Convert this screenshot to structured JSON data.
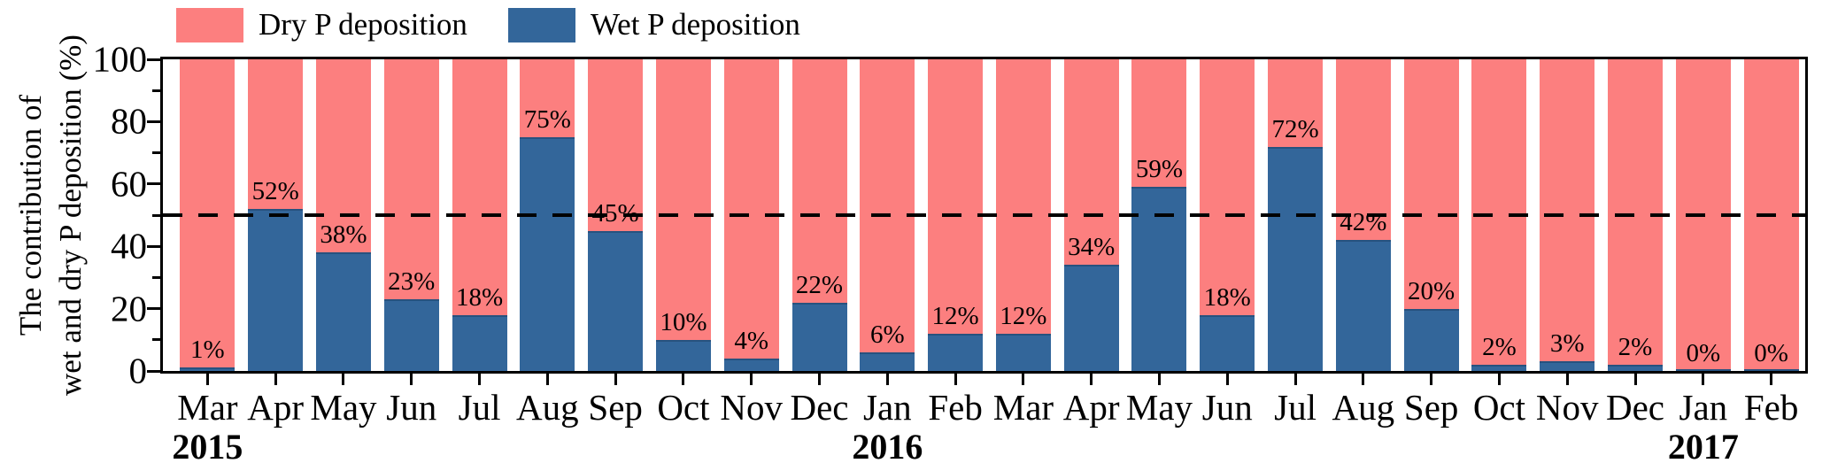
{
  "chart_data": {
    "type": "bar",
    "stacked": true,
    "title": "",
    "ylabel": [
      "The contribution of",
      "wet and dry P deposition (%)"
    ],
    "xlabel": "",
    "ylim": [
      0,
      100
    ],
    "yticks": [
      0,
      20,
      40,
      60,
      80,
      100
    ],
    "minor_yticks": [
      10,
      30,
      50,
      70,
      90
    ],
    "reference_line": 50,
    "grid": false,
    "legend_position": "top-left",
    "categories": [
      "Mar",
      "Apr",
      "May",
      "Jun",
      "Jul",
      "Aug",
      "Sep",
      "Oct",
      "Nov",
      "Dec",
      "Jan",
      "Feb",
      "Mar",
      "Apr",
      "May",
      "Jun",
      "Jul",
      "Aug",
      "Sep",
      "Oct",
      "Nov",
      "Dec",
      "Jan",
      "Feb"
    ],
    "year_labels": [
      {
        "index": 0,
        "label": "2015"
      },
      {
        "index": 10,
        "label": "2016"
      },
      {
        "index": 22,
        "label": "2017"
      }
    ],
    "series": [
      {
        "name": "Dry P deposition",
        "color": "#FC7F7F",
        "values": [
          99,
          48,
          62,
          77,
          82,
          25,
          55,
          90,
          96,
          78,
          94,
          88,
          88,
          66,
          41,
          82,
          28,
          58,
          80,
          98,
          97,
          98,
          100,
          100
        ]
      },
      {
        "name": "Wet P deposition",
        "color": "#33669A",
        "values": [
          1,
          52,
          38,
          23,
          18,
          75,
          45,
          10,
          4,
          22,
          6,
          12,
          12,
          34,
          59,
          18,
          72,
          42,
          20,
          2,
          3,
          2,
          0,
          0
        ]
      }
    ],
    "bar_labels": [
      "1%",
      "52%",
      "38%",
      "23%",
      "18%",
      "75%",
      "45%",
      "10%",
      "4%",
      "22%",
      "6%",
      "12%",
      "12%",
      "34%",
      "59%",
      "18%",
      "72%",
      "42%",
      "20%",
      "2%",
      "3%",
      "2%",
      "0%",
      "0%"
    ]
  },
  "legend": {
    "items": [
      {
        "label": "Dry P deposition",
        "color": "#FC7F7F"
      },
      {
        "label": "Wet P deposition",
        "color": "#33669A"
      }
    ]
  },
  "colors": {
    "dry": "#FC7F7F",
    "wet": "#33669A",
    "wet_edge": "#27527F",
    "axis": "#000000",
    "background": "#FFFFFF"
  }
}
